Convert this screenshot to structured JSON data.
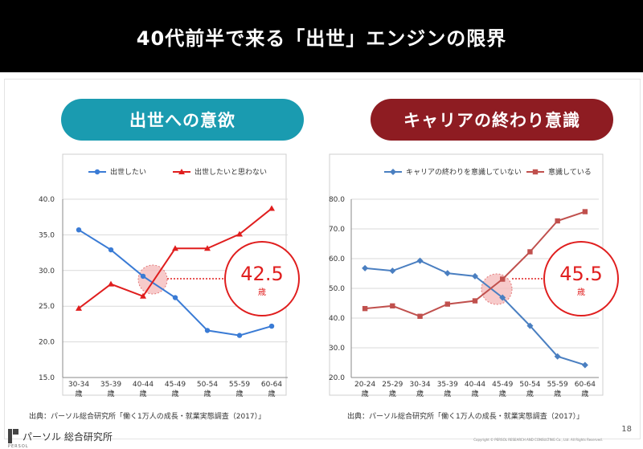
{
  "header": {
    "title": "40代前半で来る「出世」エンジンの限界"
  },
  "pills": {
    "left": "出世への意欲",
    "right": "キャリアの終わり意識"
  },
  "colors": {
    "pill_left": "#1a9bb0",
    "pill_right": "#8e1c22"
  },
  "chart_data": [
    {
      "type": "line",
      "categories": [
        "30-34\n歳",
        "35-39\n歳",
        "40-44\n歳",
        "45-49\n歳",
        "50-54\n歳",
        "55-59\n歳",
        "60-64\n歳"
      ],
      "ylim": [
        15,
        40
      ],
      "yticks": [
        "15.0",
        "20.0",
        "25.0",
        "30.0",
        "35.0",
        "40.0"
      ],
      "legend": "top",
      "series": [
        {
          "name": "出世したい",
          "color": "#3a7bd5",
          "marker": "circle",
          "values": [
            35.7,
            32.9,
            29.2,
            26.2,
            21.6,
            20.9,
            22.2
          ]
        },
        {
          "name": "出世したいと思わない",
          "color": "#e01e1e",
          "marker": "triangle",
          "values": [
            24.7,
            28.1,
            26.4,
            33.1,
            33.1,
            35.1,
            38.7
          ]
        }
      ],
      "annotation": {
        "value": "42.5",
        "unit": "歳"
      }
    },
    {
      "type": "line",
      "categories": [
        "20-24\n歳",
        "25-29\n歳",
        "30-34\n歳",
        "35-39\n歳",
        "40-44\n歳",
        "45-49\n歳",
        "50-54\n歳",
        "55-59\n歳",
        "60-64\n歳"
      ],
      "ylim": [
        20,
        80
      ],
      "yticks": [
        "20.0",
        "30.0",
        "40.0",
        "50.0",
        "60.0",
        "70.0",
        "80.0"
      ],
      "legend": "top",
      "series": [
        {
          "name": "キャリアの終わりを意識していない",
          "color": "#4a7fc1",
          "marker": "diamond",
          "values": [
            56.8,
            55.9,
            59.3,
            55.1,
            54.1,
            46.9,
            37.4,
            27.1,
            24.2
          ]
        },
        {
          "name": "意識している",
          "color": "#c0504d",
          "marker": "square",
          "values": [
            43.2,
            44.1,
            40.6,
            44.7,
            45.8,
            53.1,
            62.3,
            72.7,
            75.8
          ]
        }
      ],
      "annotation": {
        "value": "45.5",
        "unit": "歳"
      }
    }
  ],
  "sources": {
    "left": "出典：パーソル総合研究所「働く1万人の成長・就業実態調査（2017）」",
    "right": "出典：パーソル総合研究所「働く1万人の成長・就業実態調査（2017）」"
  },
  "footer": {
    "logo_text": "パーソル 総合研究所",
    "logo_sub": "PERSOL",
    "copyright": "Copyright © PERSOL RESEARCH AND CONSULTING Co., Ltd. All Rights Reserved.",
    "page": "18"
  }
}
